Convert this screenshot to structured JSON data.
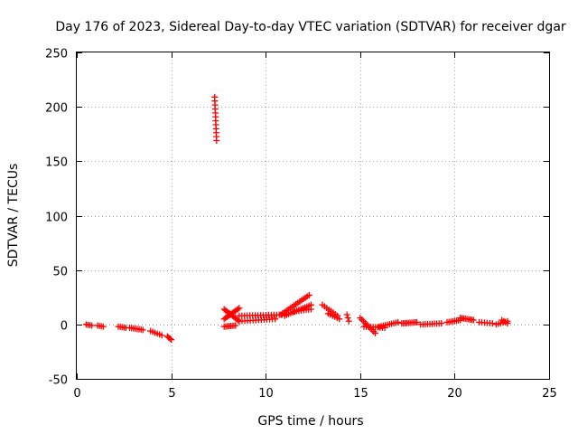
{
  "chart_data": {
    "type": "scatter",
    "title": "Day 176 of 2023, Sidereal Day-to-day VTEC variation (SDTVAR) for receiver dgar",
    "xlabel": "GPS time / hours",
    "ylabel": "SDTVAR / TECUs",
    "xlim": [
      0,
      25
    ],
    "ylim": [
      -50,
      250
    ],
    "xticks": [
      0,
      5,
      10,
      15,
      20,
      25
    ],
    "yticks": [
      -50,
      0,
      50,
      100,
      150,
      200,
      250
    ],
    "xtick_labels": [
      "0",
      "5",
      "10",
      "15",
      "20",
      "25"
    ],
    "ytick_labels": [
      "-50",
      "0",
      "50",
      "100",
      "150",
      "200",
      "250"
    ],
    "grid": true,
    "marker": "plus",
    "color": "#ff0000",
    "segments": [
      {
        "x_start": 0.5,
        "x_end": 0.8,
        "y_start": 0,
        "y_end": -1,
        "points": 4
      },
      {
        "x_start": 1.1,
        "x_end": 1.4,
        "y_start": -1,
        "y_end": -2,
        "points": 4
      },
      {
        "x_start": 2.2,
        "x_end": 2.6,
        "y_start": -2,
        "y_end": -3,
        "points": 5
      },
      {
        "x_start": 2.8,
        "x_end": 3.5,
        "y_start": -3,
        "y_end": -5,
        "points": 8
      },
      {
        "x_start": 3.9,
        "x_end": 4.5,
        "y_start": -6,
        "y_end": -10,
        "points": 6
      },
      {
        "x_start": 4.8,
        "x_end": 5.0,
        "y_start": -11,
        "y_end": -14,
        "points": 4
      },
      {
        "x_start": 7.3,
        "x_end": 7.4,
        "y_start": 209,
        "y_end": 169,
        "points": 12
      },
      {
        "x_start": 7.8,
        "x_end": 8.6,
        "y_start": 5,
        "y_end": 15,
        "points": 12
      },
      {
        "x_start": 7.8,
        "x_end": 8.6,
        "y_start": 14,
        "y_end": 3,
        "points": 12
      },
      {
        "x_start": 7.8,
        "x_end": 8.4,
        "y_start": -2,
        "y_end": -1,
        "points": 8
      },
      {
        "x_start": 8.6,
        "x_end": 11.0,
        "y_start": 8,
        "y_end": 9,
        "points": 18
      },
      {
        "x_start": 8.6,
        "x_end": 10.5,
        "y_start": 3,
        "y_end": 5,
        "points": 14
      },
      {
        "x_start": 10.8,
        "x_end": 12.3,
        "y_start": 9,
        "y_end": 27,
        "points": 16
      },
      {
        "x_start": 11.0,
        "x_end": 12.4,
        "y_start": 8,
        "y_end": 18,
        "points": 14
      },
      {
        "x_start": 11.5,
        "x_end": 12.4,
        "y_start": 12,
        "y_end": 14,
        "points": 8
      },
      {
        "x_start": 13.0,
        "x_end": 13.8,
        "y_start": 18,
        "y_end": 8,
        "points": 8
      },
      {
        "x_start": 13.3,
        "x_end": 13.9,
        "y_start": 10,
        "y_end": 5,
        "points": 6
      },
      {
        "x_start": 14.3,
        "x_end": 14.4,
        "y_start": 9,
        "y_end": 3,
        "points": 3
      },
      {
        "x_start": 15.0,
        "x_end": 15.8,
        "y_start": 6,
        "y_end": -8,
        "points": 10
      },
      {
        "x_start": 15.2,
        "x_end": 16.3,
        "y_start": -2,
        "y_end": -3,
        "points": 10
      },
      {
        "x_start": 16.0,
        "x_end": 17.0,
        "y_start": -2,
        "y_end": 2,
        "points": 10
      },
      {
        "x_start": 17.2,
        "x_end": 18.0,
        "y_start": 1,
        "y_end": 2,
        "points": 10
      },
      {
        "x_start": 18.2,
        "x_end": 19.3,
        "y_start": 0,
        "y_end": 1,
        "points": 10
      },
      {
        "x_start": 19.6,
        "x_end": 20.3,
        "y_start": 2,
        "y_end": 4,
        "points": 8
      },
      {
        "x_start": 20.3,
        "x_end": 21.0,
        "y_start": 6,
        "y_end": 4,
        "points": 9
      },
      {
        "x_start": 21.3,
        "x_end": 22.0,
        "y_start": 2,
        "y_end": 1,
        "points": 6
      },
      {
        "x_start": 22.2,
        "x_end": 22.8,
        "y_start": 0,
        "y_end": 3,
        "points": 6
      },
      {
        "x_start": 22.5,
        "x_end": 22.8,
        "y_start": 4,
        "y_end": 1,
        "points": 4
      }
    ]
  }
}
